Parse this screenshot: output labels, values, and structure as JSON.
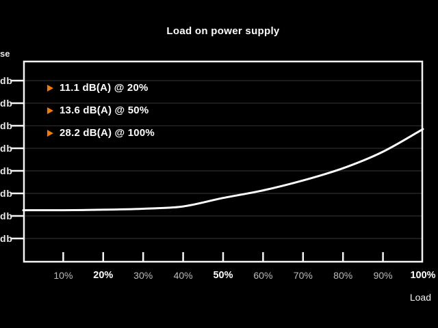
{
  "title": "Load on power supply",
  "colors": {
    "background": "#000000",
    "text": "#ffffff",
    "muted_tick_label": "#bdbdbd",
    "accent_orange": "#ef7d00",
    "grid": "#262626",
    "axis": "#f5f5f5",
    "curve": "#ffffff"
  },
  "y_axis": {
    "title_fragment": "se",
    "ticks": [
      "db",
      "db",
      "db",
      "db",
      "db",
      "db",
      "db",
      "db"
    ]
  },
  "x_axis": {
    "label": "Load",
    "ticks": [
      {
        "pct": 10,
        "label": "10%",
        "bold": false
      },
      {
        "pct": 20,
        "label": "20%",
        "bold": true
      },
      {
        "pct": 30,
        "label": "30%",
        "bold": false
      },
      {
        "pct": 40,
        "label": "40%",
        "bold": false
      },
      {
        "pct": 50,
        "label": "50%",
        "bold": true
      },
      {
        "pct": 60,
        "label": "60%",
        "bold": false
      },
      {
        "pct": 70,
        "label": "70%",
        "bold": false
      },
      {
        "pct": 80,
        "label": "80%",
        "bold": false
      },
      {
        "pct": 90,
        "label": "90%",
        "bold": false
      },
      {
        "pct": 100,
        "label": "100%",
        "bold": true
      }
    ]
  },
  "legend": {
    "items": [
      {
        "marker": "triangle-right",
        "text": "11.1 dB(A) @ 20%"
      },
      {
        "marker": "triangle-right",
        "text": "13.6 dB(A) @ 50%"
      },
      {
        "marker": "triangle-right",
        "text": "28.2 dB(A) @ 100%"
      }
    ]
  },
  "chart_data": {
    "type": "line",
    "title": "Load on power supply",
    "xlabel": "Load",
    "ylabel_visible_fragment": "se",
    "y_tick_label_visible": "db",
    "x_unit": "%",
    "xlim_pct": [
      0,
      100
    ],
    "ylim_db_estimate": [
      5,
      40
    ],
    "grid": "horizontal-faint",
    "legend_position": "top-left-inside",
    "emphasized_x_ticks": [
      20,
      50,
      100
    ],
    "annotations": [
      "11.1 dB(A) @ 20%",
      "13.6 dB(A) @ 50%",
      "28.2 dB(A) @ 100%"
    ],
    "series": [
      {
        "name": "noise-curve",
        "x_pct": [
          0,
          10,
          20,
          30,
          40,
          50,
          60,
          70,
          80,
          90,
          100
        ],
        "y_db": [
          11.0,
          11.0,
          11.1,
          11.3,
          11.8,
          13.6,
          15.2,
          17.3,
          19.9,
          23.4,
          28.2
        ]
      }
    ]
  }
}
